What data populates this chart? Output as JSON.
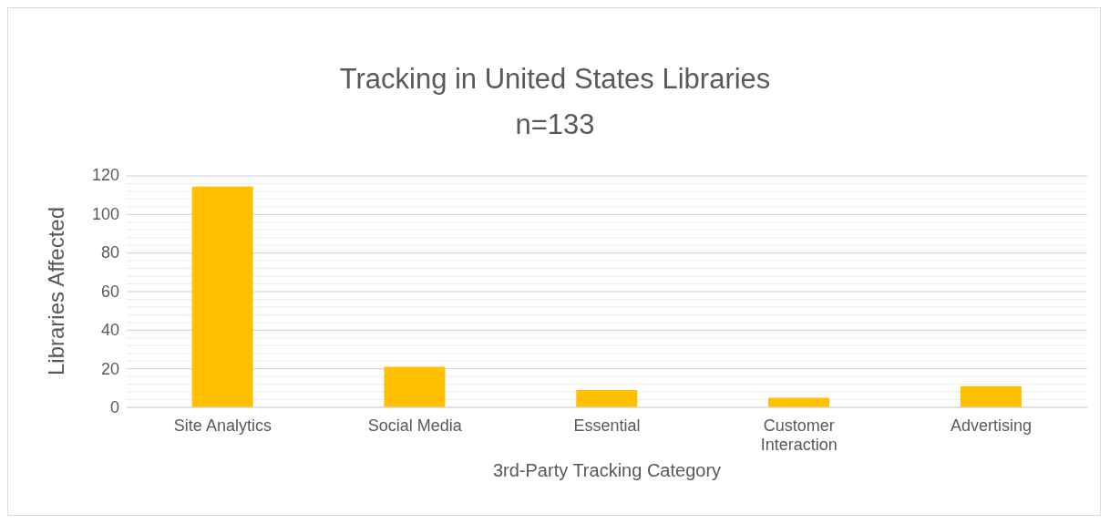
{
  "chart_data": {
    "type": "bar",
    "title": "Tracking in United States Libraries",
    "subtitle": "n=133",
    "xlabel": "3rd-Party Tracking Category",
    "ylabel": "Libraries Affected",
    "categories": [
      "Site Analytics",
      "Social Media",
      "Essential",
      "Customer Interaction",
      "Advertising"
    ],
    "values": [
      114,
      21,
      9,
      5,
      11
    ],
    "color": "#ffc000",
    "ylim": [
      0,
      120
    ],
    "yticks": [
      0,
      {
        "value": 4,
        "label": null
      },
      {
        "value": 8,
        "label": null
      },
      {
        "value": 12,
        "label": null
      },
      {
        "value": 16,
        "label": null
      },
      20,
      {
        "value": 24,
        "label": null
      },
      {
        "value": 28,
        "label": null
      },
      {
        "value": 32,
        "label": null
      },
      {
        "value": 36,
        "label": null
      },
      40,
      {
        "value": 44,
        "label": null
      },
      {
        "value": 48,
        "label": null
      },
      {
        "value": 52,
        "label": null
      },
      {
        "value": 56,
        "label": null
      },
      60,
      {
        "value": 64,
        "label": null
      },
      {
        "value": 68,
        "label": null
      },
      {
        "value": 72,
        "label": null
      },
      {
        "value": 76,
        "label": null
      },
      80,
      {
        "value": 84,
        "label": null
      },
      {
        "value": 88,
        "label": null
      },
      {
        "value": 92,
        "label": null
      },
      {
        "value": 96,
        "label": null
      },
      100,
      {
        "value": 104,
        "label": null
      },
      {
        "value": 108,
        "label": null
      },
      {
        "value": 112,
        "label": null
      },
      {
        "value": 116,
        "label": null
      },
      120
    ],
    "grid": "y"
  }
}
